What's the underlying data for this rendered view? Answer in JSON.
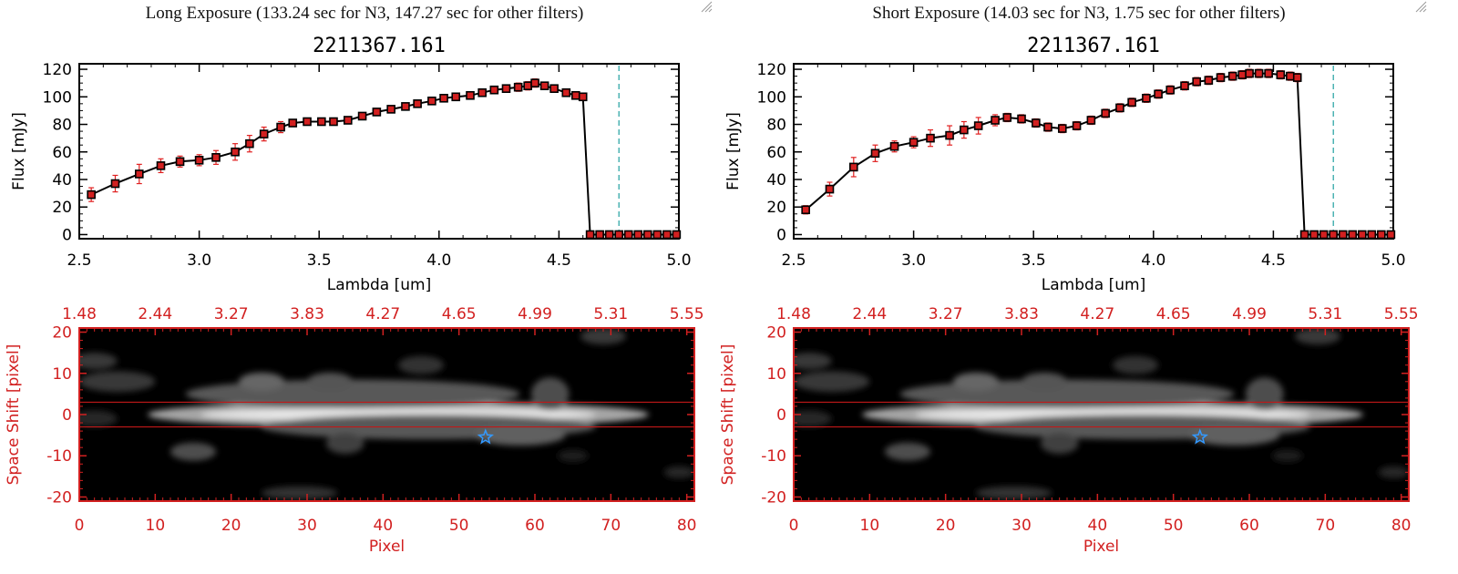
{
  "colors": {
    "spectrum_line": "#000000",
    "marker": "#d22020",
    "errorbar": "#e02020",
    "cutoff_line": "#20a0a0",
    "image_axes": "#d22020",
    "aperture": "#c01818",
    "star_marker": "#3399ff"
  },
  "chart_data": [
    {
      "type": "line",
      "exposure_title": "Long Exposure (133.24 sec for N3, 147.27 sec for other filters)",
      "title": "2211367.161",
      "xlabel": "Lambda [um]",
      "ylabel": "Flux [mJy]",
      "xlim": [
        2.5,
        5.0
      ],
      "ylim": [
        -3,
        124
      ],
      "xticks": [
        "2.5",
        "3.0",
        "3.5",
        "4.0",
        "4.5",
        "5.0"
      ],
      "yticks": [
        "0",
        "20",
        "40",
        "60",
        "80",
        "100",
        "120"
      ],
      "cutoff_wavelength": 4.75,
      "x": [
        2.55,
        2.65,
        2.75,
        2.84,
        2.92,
        3.0,
        3.07,
        3.15,
        3.21,
        3.27,
        3.34,
        3.39,
        3.45,
        3.51,
        3.56,
        3.62,
        3.68,
        3.74,
        3.8,
        3.86,
        3.91,
        3.97,
        4.02,
        4.07,
        4.13,
        4.18,
        4.23,
        4.28,
        4.33,
        4.37,
        4.4,
        4.44,
        4.48,
        4.53,
        4.57,
        4.6,
        4.63,
        4.67,
        4.71,
        4.75,
        4.79,
        4.83,
        4.87,
        4.91,
        4.95,
        4.99
      ],
      "values": [
        29,
        37,
        44,
        50,
        53,
        54,
        56,
        60,
        66,
        73,
        78,
        81,
        82,
        82,
        82,
        83,
        86,
        89,
        91,
        93,
        95,
        97,
        99,
        100,
        101,
        103,
        105,
        106,
        107,
        108,
        110,
        108,
        106,
        103,
        101,
        100,
        0,
        0,
        0,
        0,
        0,
        0,
        0,
        0,
        0,
        0
      ],
      "errors": [
        5,
        6,
        7,
        5,
        4,
        4,
        5,
        6,
        6,
        5,
        4,
        2,
        2,
        2,
        2,
        2,
        2,
        2,
        2,
        2,
        2,
        2,
        2,
        2,
        2,
        2,
        2,
        2,
        3,
        3,
        3,
        2,
        2,
        2,
        2,
        2,
        0,
        0,
        0,
        0,
        0,
        0,
        0,
        0,
        0,
        0
      ],
      "image": {
        "xlabel": "Pixel",
        "ylabel": "Space Shift [pixel]",
        "xlim": [
          0,
          81
        ],
        "ylim": [
          -21,
          21
        ],
        "xticks": [
          "0",
          "10",
          "20",
          "30",
          "40",
          "50",
          "60",
          "70",
          "80"
        ],
        "yticks": [
          "-20",
          "-10",
          "0",
          "10",
          "20"
        ],
        "top_ticks": [
          "1.48",
          "2.44",
          "3.27",
          "3.83",
          "4.27",
          "4.65",
          "4.99",
          "5.31",
          "5.55"
        ],
        "aperture": [
          -3,
          3
        ],
        "star": {
          "x": 53.5,
          "y": -5.5
        },
        "blobs": [
          {
            "x": 42,
            "y": 0,
            "rx": 33,
            "ry": 3.2,
            "v": 0.65
          },
          {
            "x": 42,
            "y": 0,
            "rx": 26,
            "ry": 1.6,
            "v": 0.9
          },
          {
            "x": 36,
            "y": 5,
            "rx": 22,
            "ry": 3.5,
            "v": 0.35
          },
          {
            "x": 46,
            "y": -3,
            "rx": 22,
            "ry": 3,
            "v": 0.35
          },
          {
            "x": 58,
            "y": -5,
            "rx": 6,
            "ry": 2.5,
            "v": 0.38
          },
          {
            "x": 24,
            "y": 8,
            "rx": 3,
            "ry": 2.2,
            "v": 0.4
          },
          {
            "x": 33,
            "y": 8,
            "rx": 3,
            "ry": 2.2,
            "v": 0.33
          },
          {
            "x": 62,
            "y": 5,
            "rx": 2.5,
            "ry": 4,
            "v": 0.3
          },
          {
            "x": 15,
            "y": -9,
            "rx": 3,
            "ry": 2.2,
            "v": 0.3
          },
          {
            "x": 35,
            "y": -7,
            "rx": 2.5,
            "ry": 2.5,
            "v": 0.25
          },
          {
            "x": 5,
            "y": 8,
            "rx": 5,
            "ry": 2.5,
            "v": 0.22
          },
          {
            "x": 2,
            "y": 13,
            "rx": 3,
            "ry": 2,
            "v": 0.22
          },
          {
            "x": 45,
            "y": 12,
            "rx": 3,
            "ry": 2.2,
            "v": 0.2
          },
          {
            "x": 69,
            "y": 19,
            "rx": 3,
            "ry": 2,
            "v": 0.22
          },
          {
            "x": 29,
            "y": -19,
            "rx": 5,
            "ry": 1.6,
            "v": 0.2
          },
          {
            "x": 2,
            "y": -1,
            "rx": 3,
            "ry": 2,
            "v": 0.15
          },
          {
            "x": 65,
            "y": -10,
            "rx": 2,
            "ry": 1.5,
            "v": 0.12
          },
          {
            "x": 79,
            "y": -14,
            "rx": 2,
            "ry": 1.5,
            "v": 0.15
          }
        ]
      }
    },
    {
      "type": "line",
      "exposure_title": "Short Exposure (14.03 sec for N3, 1.75 sec for other filters)",
      "title": "2211367.161",
      "xlabel": "Lambda [um]",
      "ylabel": "Flux [mJy]",
      "xlim": [
        2.5,
        5.0
      ],
      "ylim": [
        -3,
        124
      ],
      "xticks": [
        "2.5",
        "3.0",
        "3.5",
        "4.0",
        "4.5",
        "5.0"
      ],
      "yticks": [
        "0",
        "20",
        "40",
        "60",
        "80",
        "100",
        "120"
      ],
      "cutoff_wavelength": 4.75,
      "x": [
        2.55,
        2.65,
        2.75,
        2.84,
        2.92,
        3.0,
        3.07,
        3.15,
        3.21,
        3.27,
        3.34,
        3.39,
        3.45,
        3.51,
        3.56,
        3.62,
        3.68,
        3.74,
        3.8,
        3.86,
        3.91,
        3.97,
        4.02,
        4.07,
        4.13,
        4.18,
        4.23,
        4.28,
        4.33,
        4.37,
        4.4,
        4.44,
        4.48,
        4.53,
        4.57,
        4.6,
        4.63,
        4.67,
        4.71,
        4.75,
        4.79,
        4.83,
        4.87,
        4.91,
        4.95,
        4.99
      ],
      "values": [
        18,
        33,
        49,
        59,
        64,
        67,
        70,
        72,
        76,
        79,
        83,
        85,
        84,
        81,
        78,
        77,
        79,
        83,
        88,
        92,
        96,
        99,
        102,
        105,
        108,
        111,
        112,
        114,
        115,
        116,
        117,
        117,
        117,
        116,
        115,
        114,
        0,
        0,
        0,
        0,
        0,
        0,
        0,
        0,
        0,
        0
      ],
      "errors": [
        3,
        5,
        7,
        6,
        4,
        4,
        6,
        7,
        6,
        6,
        4,
        3,
        3,
        3,
        3,
        3,
        3,
        3,
        3,
        3,
        3,
        3,
        3,
        3,
        3,
        3,
        3,
        3,
        3,
        3,
        3,
        3,
        3,
        3,
        3,
        3,
        0,
        0,
        0,
        0,
        0,
        0,
        0,
        0,
        0,
        0
      ],
      "image": {
        "xlabel": "Pixel",
        "ylabel": "Space Shift [pixel]",
        "xlim": [
          0,
          81
        ],
        "ylim": [
          -21,
          21
        ],
        "xticks": [
          "0",
          "10",
          "20",
          "30",
          "40",
          "50",
          "60",
          "70",
          "80"
        ],
        "yticks": [
          "-20",
          "-10",
          "0",
          "10",
          "20"
        ],
        "top_ticks": [
          "1.48",
          "2.44",
          "3.27",
          "3.83",
          "4.27",
          "4.65",
          "4.99",
          "5.31",
          "5.55"
        ],
        "aperture": [
          -3,
          3
        ],
        "star": {
          "x": 53.5,
          "y": -5.5
        },
        "blobs": [
          {
            "x": 42,
            "y": 0,
            "rx": 33,
            "ry": 3.2,
            "v": 0.65
          },
          {
            "x": 42,
            "y": 0,
            "rx": 26,
            "ry": 1.6,
            "v": 0.9
          },
          {
            "x": 36,
            "y": 5,
            "rx": 22,
            "ry": 3.5,
            "v": 0.35
          },
          {
            "x": 46,
            "y": -3,
            "rx": 22,
            "ry": 3,
            "v": 0.35
          },
          {
            "x": 58,
            "y": -5,
            "rx": 6,
            "ry": 2.5,
            "v": 0.38
          },
          {
            "x": 24,
            "y": 8,
            "rx": 3,
            "ry": 2.2,
            "v": 0.4
          },
          {
            "x": 33,
            "y": 8,
            "rx": 3,
            "ry": 2.2,
            "v": 0.33
          },
          {
            "x": 62,
            "y": 5,
            "rx": 2.5,
            "ry": 4,
            "v": 0.3
          },
          {
            "x": 15,
            "y": -9,
            "rx": 3,
            "ry": 2.2,
            "v": 0.3
          },
          {
            "x": 35,
            "y": -7,
            "rx": 2.5,
            "ry": 2.5,
            "v": 0.25
          },
          {
            "x": 5,
            "y": 8,
            "rx": 5,
            "ry": 2.5,
            "v": 0.22
          },
          {
            "x": 2,
            "y": 13,
            "rx": 3,
            "ry": 2,
            "v": 0.22
          },
          {
            "x": 45,
            "y": 12,
            "rx": 3,
            "ry": 2.2,
            "v": 0.2
          },
          {
            "x": 69,
            "y": 19,
            "rx": 3,
            "ry": 2,
            "v": 0.22
          },
          {
            "x": 29,
            "y": -19,
            "rx": 5,
            "ry": 1.6,
            "v": 0.2
          },
          {
            "x": 2,
            "y": -1,
            "rx": 3,
            "ry": 2,
            "v": 0.15
          },
          {
            "x": 65,
            "y": -10,
            "rx": 2,
            "ry": 1.5,
            "v": 0.12
          },
          {
            "x": 79,
            "y": -14,
            "rx": 2,
            "ry": 1.5,
            "v": 0.15
          }
        ]
      }
    }
  ]
}
